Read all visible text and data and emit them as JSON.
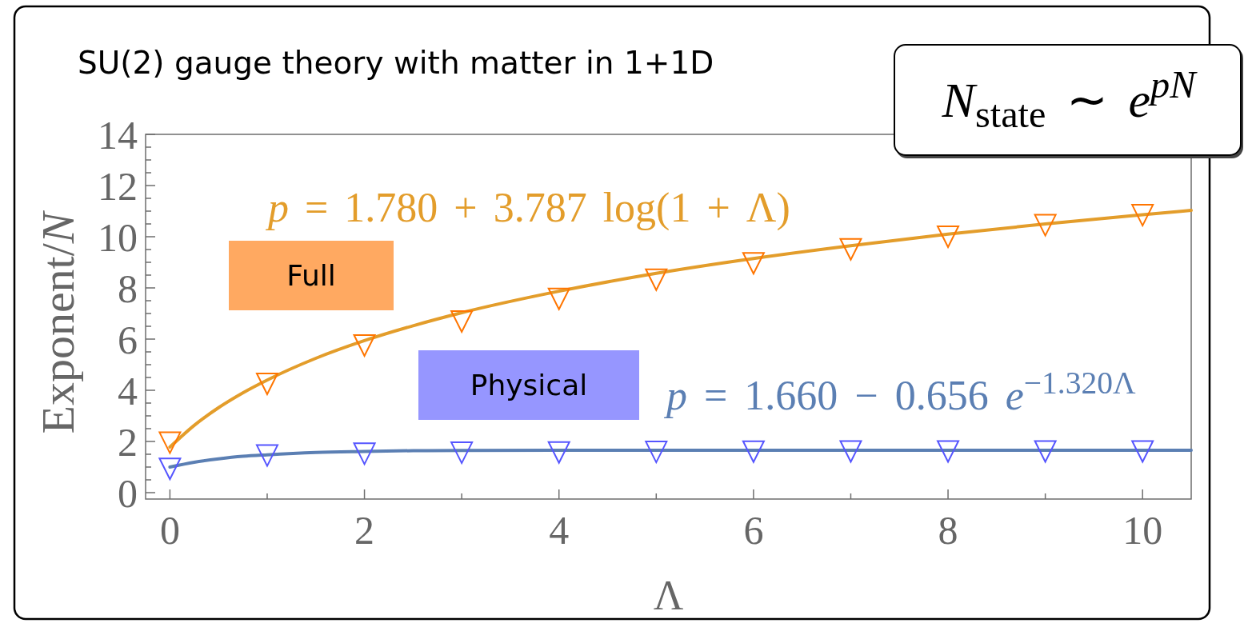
{
  "chart_data": {
    "type": "scatter",
    "title": "SU(2) gauge theory with matter in 1+1D",
    "xlabel": "Λ",
    "ylabel": "Exponent/N",
    "annotations": [
      "N$_{state}$ ∼ e$^{pN}$"
    ],
    "series": [
      {
        "name": "Full",
        "type": "scatter",
        "marker": "triangle",
        "color": "#ff7500",
        "x": [
          0,
          1,
          2,
          3,
          4,
          5,
          6,
          7,
          8,
          9,
          10
        ],
        "values": [
          1.95,
          4.25,
          5.75,
          6.69,
          7.57,
          8.32,
          8.96,
          9.51,
          10.0,
          10.45,
          10.84
        ]
      },
      {
        "name": "p = 1.780 + 3.787 log(1 + Λ)",
        "type": "line",
        "marker": "none",
        "color": "#e39d2b",
        "x": [
          0,
          0.25,
          0.5,
          0.75,
          1,
          1.5,
          2,
          2.5,
          3,
          4,
          5,
          6,
          7,
          8,
          9,
          10,
          10.5
        ],
        "values": [
          1.78,
          2.63,
          3.32,
          3.9,
          4.4,
          5.25,
          5.94,
          6.52,
          7.03,
          7.87,
          8.57,
          9.15,
          9.65,
          10.1,
          10.5,
          10.86,
          11.03
        ]
      },
      {
        "name": "Physical",
        "type": "scatter",
        "marker": "triangle",
        "color": "#5555ff",
        "x": [
          0,
          1,
          2,
          3,
          4,
          5,
          6,
          7,
          8,
          9,
          10
        ],
        "values": [
          0.93,
          1.45,
          1.52,
          1.56,
          1.57,
          1.59,
          1.6,
          1.61,
          1.61,
          1.61,
          1.61
        ]
      },
      {
        "name": "p = 1.660 − 0.656 e$^{−1.320Λ}$",
        "type": "line",
        "marker": "none",
        "color": "#5b7fb3",
        "x": [
          0,
          0.25,
          0.5,
          0.75,
          1,
          1.5,
          2,
          2.5,
          3,
          4,
          5,
          6,
          8,
          10.5
        ],
        "values": [
          1.0,
          1.19,
          1.32,
          1.42,
          1.48,
          1.57,
          1.61,
          1.64,
          1.65,
          1.66,
          1.66,
          1.66,
          1.66,
          1.66
        ]
      }
    ],
    "xlim": [
      -0.25,
      10.5
    ],
    "ylim": [
      -0.25,
      14
    ],
    "xticks": [
      0,
      {
        "value": 1,
        "label": null
      },
      2,
      {
        "value": 3,
        "label": null
      },
      4,
      {
        "value": 5,
        "label": null
      },
      6,
      {
        "value": 7,
        "label": null
      },
      8,
      {
        "value": 9,
        "label": null
      },
      10
    ],
    "yticks": [
      0,
      {
        "value": 0.5,
        "label": null
      },
      {
        "value": 1,
        "label": null
      },
      {
        "value": 1.5,
        "label": null
      },
      2,
      {
        "value": 2.5,
        "label": null
      },
      {
        "value": 3,
        "label": null
      },
      {
        "value": 3.5,
        "label": null
      },
      4,
      {
        "value": 4.5,
        "label": null
      },
      {
        "value": 5,
        "label": null
      },
      {
        "value": 5.5,
        "label": null
      },
      6,
      {
        "value": 6.5,
        "label": null
      },
      {
        "value": 7,
        "label": null
      },
      {
        "value": 7.5,
        "label": null
      },
      8,
      {
        "value": 8.5,
        "label": null
      },
      {
        "value": 9,
        "label": null
      },
      {
        "value": 9.5,
        "label": null
      },
      10,
      {
        "value": 10.5,
        "label": null
      },
      {
        "value": 11,
        "label": null
      },
      {
        "value": 11.5,
        "label": null
      },
      12,
      {
        "value": 12.5,
        "label": null
      },
      {
        "value": 13,
        "label": null
      },
      {
        "value": 13.5,
        "label": null
      },
      14
    ],
    "legend": false,
    "line_style": "solid"
  }
}
